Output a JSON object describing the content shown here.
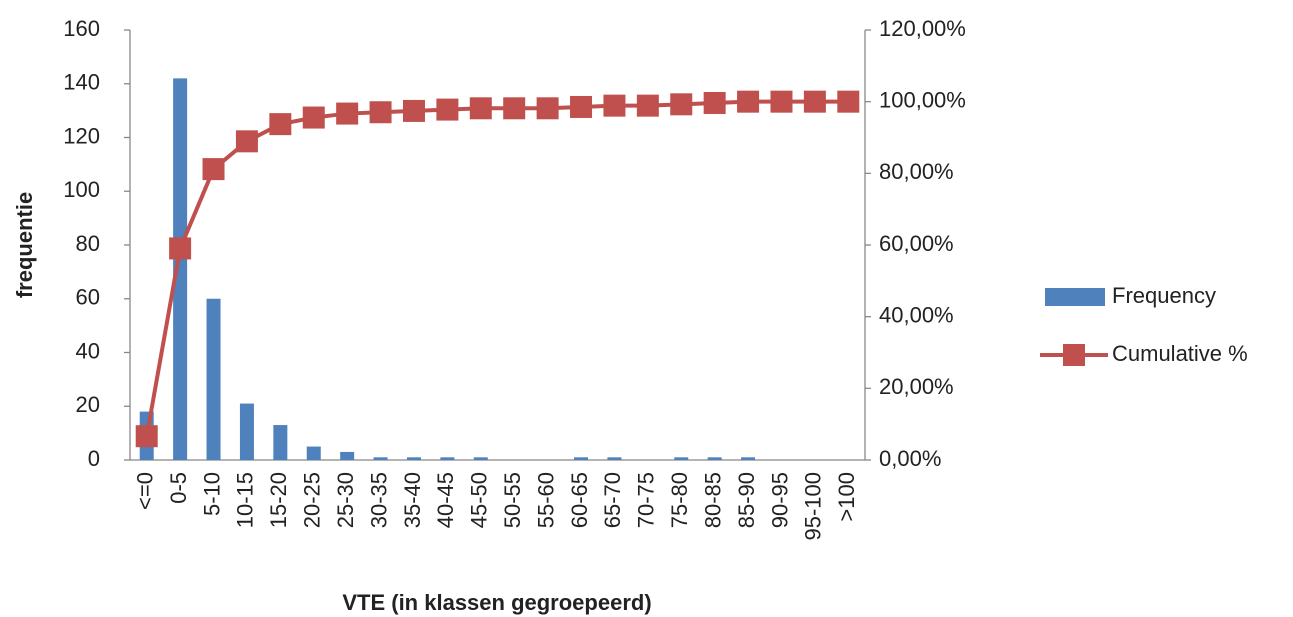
{
  "chart_data": {
    "type": "bar",
    "x_label": "VTE (in klassen gegroepeerd)",
    "y_label": "frequentie",
    "categories": [
      "<=0",
      "0-5",
      "5-10",
      "10-15",
      "15-20",
      "20-25",
      "25-30",
      "30-35",
      "35-40",
      "40-45",
      "45-50",
      "50-55",
      "55-60",
      "60-65",
      "65-70",
      "70-75",
      "75-80",
      "80-85",
      "85-90",
      "90-95",
      "95-100",
      ">100"
    ],
    "series": [
      {
        "name": "Frequency",
        "type": "bar",
        "color": "#4f81bd",
        "values": [
          18,
          142,
          60,
          21,
          13,
          5,
          3,
          1,
          1,
          1,
          1,
          0,
          0,
          1,
          1,
          0,
          1,
          1,
          1,
          0,
          0,
          0
        ]
      },
      {
        "name": "Cumulative %",
        "type": "line",
        "axis": "y2",
        "color": "#c0504d",
        "values": [
          6.64,
          59.04,
          81.18,
          88.93,
          93.73,
          95.57,
          96.68,
          97.05,
          97.42,
          97.79,
          98.15,
          98.15,
          98.15,
          98.52,
          98.89,
          98.89,
          99.26,
          99.63,
          100,
          100,
          100,
          100
        ]
      }
    ],
    "ylim": [
      0,
      160
    ],
    "yticks": [
      0,
      20,
      40,
      60,
      80,
      100,
      120,
      140,
      160
    ],
    "y2lim": [
      0,
      120
    ],
    "y2ticks": [
      {
        "value": 0,
        "label": "0,00%"
      },
      {
        "value": 20,
        "label": "20,00%"
      },
      {
        "value": 40,
        "label": "40,00%"
      },
      {
        "value": 60,
        "label": "60,00%"
      },
      {
        "value": 80,
        "label": "80,00%"
      },
      {
        "value": 100,
        "label": "100,00%"
      },
      {
        "value": 120,
        "label": "120,00%"
      }
    ],
    "grid": false,
    "legend": "right"
  }
}
